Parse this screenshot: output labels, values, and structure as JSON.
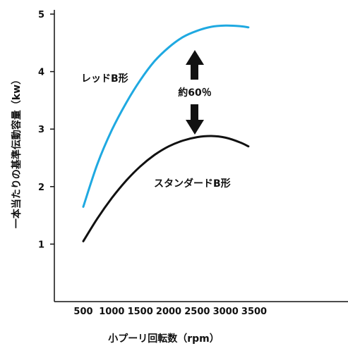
{
  "chart_data": {
    "type": "line",
    "xlabel": "小プーリ回転数（rpm）",
    "ylabel": "一本当たりの基準伝動容量（kw）",
    "x_ticks": [
      500,
      1000,
      1500,
      2000,
      2500,
      3000,
      3500
    ],
    "y_ticks": [
      1,
      2,
      3,
      4,
      5
    ],
    "xlim": [
      0,
      4200
    ],
    "ylim": [
      0,
      5
    ],
    "grid": false,
    "series": [
      {
        "name": "レッドB形",
        "color": "#1fa9e1",
        "x": [
          500,
          750,
          1000,
          1250,
          1500,
          1750,
          2000,
          2250,
          2500,
          2750,
          3000,
          3250,
          3400
        ],
        "y": [
          1.65,
          2.4,
          2.98,
          3.45,
          3.85,
          4.18,
          4.42,
          4.6,
          4.71,
          4.78,
          4.8,
          4.79,
          4.77
        ]
      },
      {
        "name": "スタンダードB形",
        "color": "#111111",
        "x": [
          500,
          750,
          1000,
          1250,
          1500,
          1750,
          2000,
          2250,
          2500,
          2750,
          3000,
          3250,
          3400
        ],
        "y": [
          1.05,
          1.45,
          1.8,
          2.1,
          2.35,
          2.55,
          2.7,
          2.8,
          2.86,
          2.88,
          2.85,
          2.77,
          2.7
        ]
      }
    ],
    "annotation": "約60％"
  }
}
